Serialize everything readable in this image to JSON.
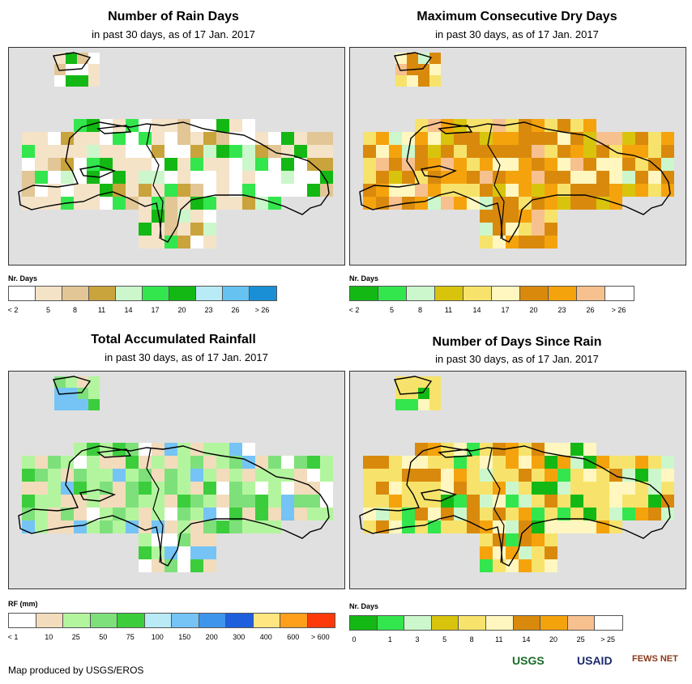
{
  "panels": {
    "rain_days": {
      "title": "Number of Rain Days",
      "subtitle": "in past 30 days, as of 17 Jan. 2017",
      "legend_title": "Nr. Days",
      "legend_colors": [
        "#ffffff",
        "#f5e3c8",
        "#e2c696",
        "#c9a33c",
        "#ccf7cc",
        "#33e64d",
        "#14b814",
        "#b8ebf5",
        "#66c2f0",
        "#1a8fd6"
      ],
      "legend_labels": [
        "< 2",
        "5",
        "8",
        "11",
        "14",
        "17",
        "20",
        "23",
        "26",
        "> 26"
      ]
    },
    "dry_days": {
      "title": "Maximum Consecutive Dry Days",
      "subtitle": "in past 30 days, as of 17 Jan. 2017",
      "legend_title": "Nr. Days",
      "legend_colors": [
        "#14b814",
        "#33e64d",
        "#ccf7cc",
        "#d9c40d",
        "#f7e36b",
        "#fff7bf",
        "#d98a0d",
        "#f5a30d",
        "#f7c08f",
        "#ffffff"
      ],
      "legend_labels": [
        "< 2",
        "5",
        "8",
        "11",
        "14",
        "17",
        "20",
        "23",
        "26",
        "> 26"
      ]
    },
    "rainfall": {
      "title": "Total Accumulated Rainfall",
      "subtitle": "in past 30 days, as of 17 Jan. 2017",
      "legend_title": "RF (mm)",
      "legend_colors": [
        "#ffffff",
        "#f2dcbc",
        "#b3f59e",
        "#7ee07a",
        "#3ccd3c",
        "#b8ebf5",
        "#75c4f5",
        "#3d96ec",
        "#1f5fdd",
        "#ffe680",
        "#ff9f1a",
        "#ff3a0a"
      ],
      "legend_labels": [
        "< 1",
        "10",
        "25",
        "50",
        "75",
        "100",
        "150",
        "200",
        "300",
        "400",
        "600",
        "> 600"
      ]
    },
    "since_rain": {
      "title": "Number of Days Since Rain",
      "subtitle": "in past 30 days, as of 17 Jan. 2017",
      "legend_title": "Nr. Days",
      "legend_colors": [
        "#14b814",
        "#33e64d",
        "#ccf7cc",
        "#d9c40d",
        "#f7e36b",
        "#fff7bf",
        "#d98a0d",
        "#f5a30d",
        "#f7c08f",
        "#ffffff"
      ],
      "legend_labels": [
        "0",
        "1",
        "3",
        "5",
        "8",
        "11",
        "14",
        "20",
        "25",
        "> 25"
      ]
    }
  },
  "credit": "Map produced by USGS/EROS",
  "logos": {
    "usgs": "USGS",
    "usaid": "USAID",
    "fews": "FEWS NET"
  }
}
